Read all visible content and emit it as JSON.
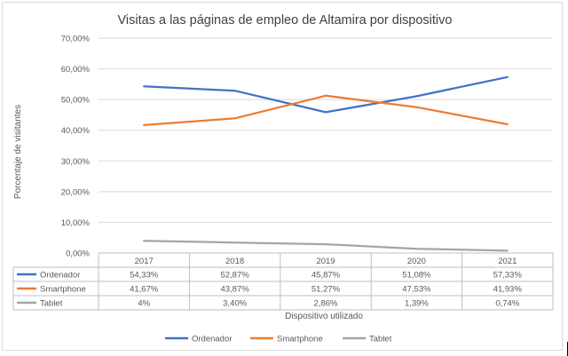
{
  "chart_data": {
    "type": "line",
    "title": "Visitas a las páginas de empleo de Altamira por dispositivo",
    "xlabel": "Dispositivo utilizado",
    "ylabel": "Porcentaje de visitantes",
    "categories": [
      "2017",
      "2018",
      "2019",
      "2020",
      "2021"
    ],
    "ylim": [
      0,
      70
    ],
    "y_ticks": [
      "0,00%",
      "10,00%",
      "20,00%",
      "30,00%",
      "40,00%",
      "50,00%",
      "60,00%",
      "70,00%"
    ],
    "grid": true,
    "legend_position": "bottom",
    "data_table": true,
    "series": [
      {
        "name": "Ordenador",
        "color": "#4472c4",
        "values": [
          54.33,
          52.87,
          45.87,
          51.08,
          57.33
        ],
        "labels": [
          "54,33%",
          "52,87%",
          "45,87%",
          "51,08%",
          "57,33%"
        ]
      },
      {
        "name": "Smartphone",
        "color": "#ed7d31",
        "values": [
          41.67,
          43.87,
          51.27,
          47.53,
          41.93
        ],
        "labels": [
          "41,67%",
          "43,87%",
          "51,27%",
          "47,53%",
          "41,93%"
        ]
      },
      {
        "name": "Tablet",
        "color": "#a5a5a5",
        "values": [
          4,
          3.4,
          2.86,
          1.39,
          0.74
        ],
        "labels": [
          "4%",
          "3,40%",
          "2,86%",
          "1,39%",
          "0,74%"
        ]
      }
    ]
  }
}
